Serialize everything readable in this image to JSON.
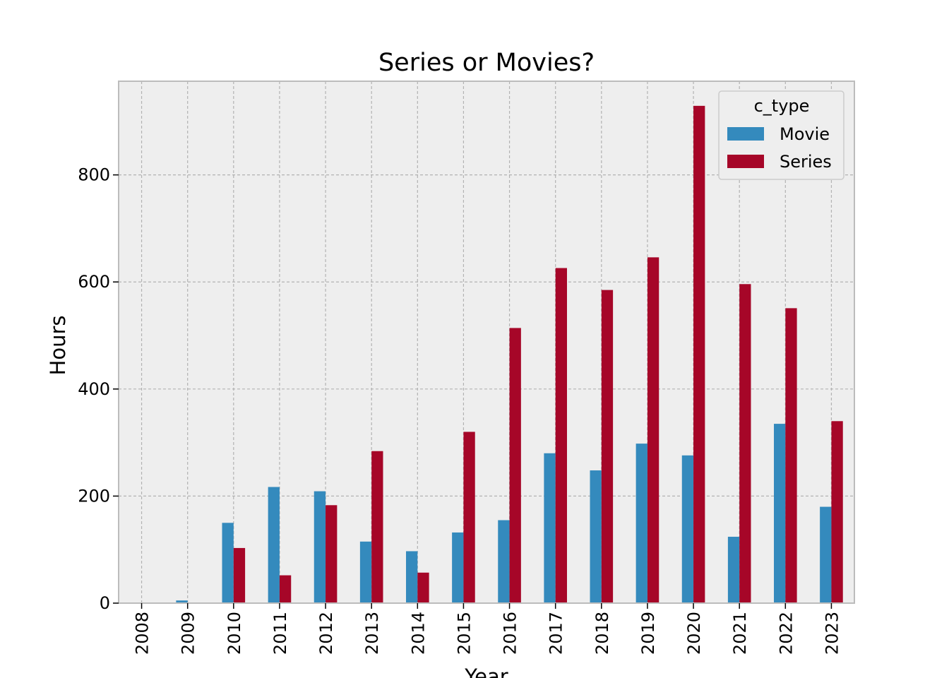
{
  "chart_data": {
    "type": "bar",
    "title": "Series or Movies?",
    "xlabel": "Year",
    "ylabel": "Hours",
    "ylim": [
      0,
      975
    ],
    "yticks": [
      0,
      200,
      400,
      600,
      800
    ],
    "grid": true,
    "legend_position": "top-right",
    "legend_title": "c_type",
    "categories": [
      "2008",
      "2009",
      "2010",
      "2011",
      "2012",
      "2013",
      "2014",
      "2015",
      "2016",
      "2017",
      "2018",
      "2019",
      "2020",
      "2021",
      "2022",
      "2023"
    ],
    "series": [
      {
        "name": "Movie",
        "color": "#348ABD",
        "values": [
          0,
          5,
          150,
          217,
          209,
          115,
          97,
          132,
          155,
          280,
          248,
          298,
          276,
          124,
          335,
          180
        ]
      },
      {
        "name": "Series",
        "color": "#A60628",
        "values": [
          0,
          0,
          103,
          52,
          183,
          284,
          57,
          320,
          514,
          626,
          585,
          646,
          929,
          596,
          551,
          340
        ]
      }
    ]
  }
}
